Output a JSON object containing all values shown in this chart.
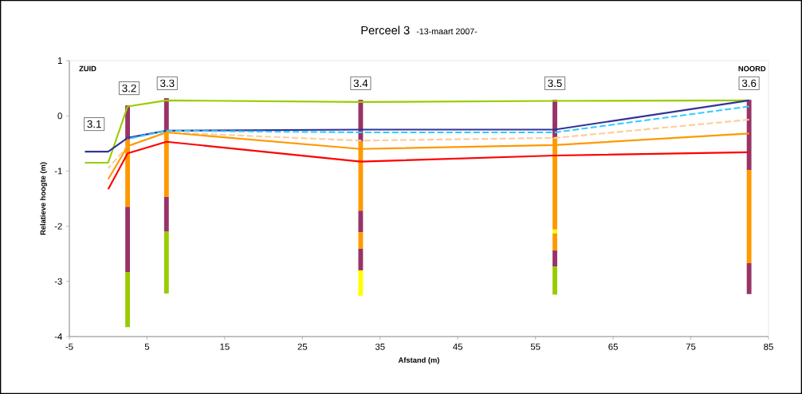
{
  "chart_data": {
    "type": "line",
    "title": "Perceel 3",
    "subtitle": "-13-maart 2007-",
    "xlabel": "Afstand (m)",
    "ylabel": "Relatieve hoogte (m)",
    "x": [
      -3,
      0,
      2.5,
      7.5,
      32.5,
      57.5,
      82.5
    ],
    "xlim": [
      -5,
      85
    ],
    "xticks": [
      -5,
      5,
      15,
      25,
      35,
      45,
      55,
      65,
      75,
      85
    ],
    "ylim": [
      -4,
      1
    ],
    "yticks": [
      -4,
      -3,
      -2,
      -1,
      0,
      1
    ],
    "grid": false,
    "marker": "none",
    "series": [
      {
        "color": "#99cc00",
        "line_style": "solid",
        "values": [
          -0.85,
          -0.85,
          0.17,
          0.28,
          0.25,
          0.27,
          0.28
        ]
      },
      {
        "color": "#333399",
        "line_style": "solid",
        "values": [
          -0.65,
          -0.65,
          -0.4,
          -0.27,
          -0.25,
          -0.25,
          0.28
        ]
      },
      {
        "color": "#33ccff",
        "line_style": "dashed",
        "x": [
          2.5,
          7.5,
          32.5,
          57.5,
          82.5
        ],
        "values": [
          -0.42,
          -0.27,
          -0.3,
          -0.3,
          0.17
        ]
      },
      {
        "color": "#ffcc99",
        "line_style": "dashed",
        "x": [
          0,
          2.5,
          7.5,
          32.5,
          57.5,
          82.5
        ],
        "values": [
          -0.95,
          -0.55,
          -0.3,
          -0.45,
          -0.4,
          -0.07
        ]
      },
      {
        "color": "#ff9900",
        "line_style": "solid",
        "x": [
          0,
          2.5,
          7.5,
          32.5,
          57.5,
          82.5
        ],
        "values": [
          -1.15,
          -0.55,
          -0.3,
          -0.6,
          -0.53,
          -0.32
        ]
      },
      {
        "color": "#ff0000",
        "line_style": "solid",
        "x": [
          0,
          2.5,
          7.5,
          32.5,
          57.5,
          82.5
        ],
        "values": [
          -1.33,
          -0.68,
          -0.47,
          -0.83,
          -0.72,
          -0.66
        ]
      },
      {
        "type": "bar",
        "x": [
          2.5,
          7.5,
          32.5,
          57.5,
          82.5
        ],
        "base": [
          -0.43,
          -0.3,
          -0.47,
          -0.4,
          -0.98
        ],
        "values": [
          0.62,
          0.62,
          0.76,
          0.69,
          1.27
        ],
        "colors": [
          "#993366",
          "#993366",
          "#993366",
          "#993366",
          "#993366"
        ]
      },
      {
        "type": "bar",
        "x": [
          2.5,
          7.5,
          32.5,
          57.5,
          82.5
        ],
        "base": [
          -1.65,
          -1.47,
          -1.72,
          -2.06,
          -2.67
        ],
        "values": [
          1.22,
          1.17,
          1.25,
          1.66,
          1.69
        ],
        "colors": [
          "#ff9900",
          "#ff9900",
          "#ff9900",
          "#ff9900",
          "#ff9900"
        ]
      },
      {
        "type": "bar",
        "x": [
          2.5,
          7.5,
          32.5,
          57.5,
          82.5
        ],
        "base": [
          -2.83,
          -2.1,
          -2.11,
          -2.13,
          -3.23
        ],
        "values": [
          1.18,
          0.63,
          0.39,
          0.07,
          0.56
        ],
        "colors": [
          "#993366",
          "#993366",
          "#993366",
          "#ffff00",
          "#993366"
        ]
      },
      {
        "type": "bar",
        "x": [
          2.5,
          7.5,
          32.5,
          57.5
        ],
        "base": [
          -3.83,
          -3.22,
          -2.41,
          -2.44
        ],
        "values": [
          1.0,
          1.12,
          0.3,
          0.31
        ],
        "colors": [
          "#99cc00",
          "#99cc00",
          "#ff9900",
          "#ff9900"
        ]
      },
      {
        "type": "bar",
        "x": [
          32.5,
          57.5
        ],
        "base": [
          -2.8,
          -2.73
        ],
        "values": [
          0.39,
          0.29
        ],
        "colors": [
          "#993366",
          "#993366"
        ]
      },
      {
        "type": "bar",
        "x": [
          32.5,
          57.5
        ],
        "base": [
          -3.26,
          -3.24
        ],
        "values": [
          0.46,
          0.51
        ],
        "colors": [
          "#ffff00",
          "#99cc00"
        ]
      }
    ],
    "annotations": [
      "ZUID",
      "NOORD",
      {
        "text": "3.1",
        "x": -1.8,
        "y": -0.15
      },
      {
        "text": "3.2",
        "x": 2.7,
        "y": 0.5
      },
      {
        "text": "3.3",
        "x": 7.6,
        "y": 0.59
      },
      {
        "text": "3.4",
        "x": 32.5,
        "y": 0.59
      },
      {
        "text": "3.5",
        "x": 57.5,
        "y": 0.59
      },
      {
        "text": "3.6",
        "x": 82.5,
        "y": 0.59
      }
    ]
  }
}
